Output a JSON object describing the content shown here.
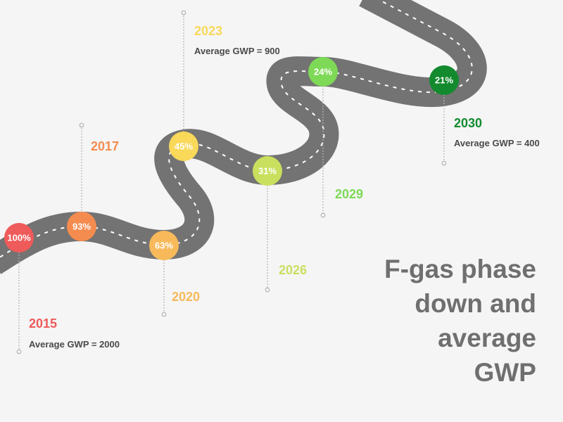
{
  "title_lines": [
    "F-gas phase",
    "down and",
    "average",
    "GWP"
  ],
  "milestones": [
    {
      "year": "2015",
      "percent": "100%",
      "gwp": "Average GWP = 2000",
      "color": "#ef5a5a"
    },
    {
      "year": "2017",
      "percent": "93%",
      "gwp": "",
      "color": "#f58c4f"
    },
    {
      "year": "2020",
      "percent": "63%",
      "gwp": "",
      "color": "#f7b95a"
    },
    {
      "year": "2023",
      "percent": "45%",
      "gwp": "Average GWP = 900",
      "color": "#f9d85a"
    },
    {
      "year": "2026",
      "percent": "31%",
      "gwp": "",
      "color": "#c9e05e"
    },
    {
      "year": "2029",
      "percent": "24%",
      "gwp": "",
      "color": "#7ed957"
    },
    {
      "year": "2030",
      "percent": "21%",
      "gwp": "Average GWP = 400",
      "color": "#138a2e"
    }
  ],
  "colors": {
    "road": "#737373",
    "road_dash": "#ffffff",
    "leader_line": "#b5b5b5",
    "title": "#6f6f6f",
    "background": "#f5f5f5"
  }
}
